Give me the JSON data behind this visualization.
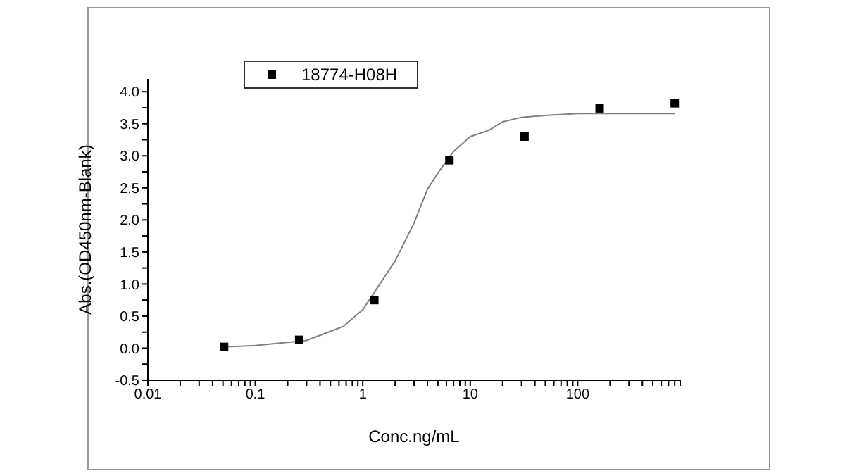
{
  "chart_data": {
    "type": "scatter",
    "xlabel": "Conc.ng/mL",
    "ylabel": "Abs.(OD450nm-Blank)",
    "log": "x",
    "xlim": [
      0.01,
      900
    ],
    "ylim": [
      -0.5,
      4.2
    ],
    "xticks": [
      {
        "value": 0.01,
        "label": "0.01"
      },
      {
        "value": 0.02,
        "label": null
      },
      {
        "value": 0.03,
        "label": null
      },
      {
        "value": 0.04,
        "label": null
      },
      {
        "value": 0.05,
        "label": null
      },
      {
        "value": 0.06,
        "label": null
      },
      {
        "value": 0.07,
        "label": null
      },
      {
        "value": 0.08,
        "label": null
      },
      {
        "value": 0.09,
        "label": null
      },
      {
        "value": 0.1,
        "label": "0.1"
      },
      {
        "value": 0.2,
        "label": null
      },
      {
        "value": 0.3,
        "label": null
      },
      {
        "value": 0.4,
        "label": null
      },
      {
        "value": 0.5,
        "label": null
      },
      {
        "value": 0.6,
        "label": null
      },
      {
        "value": 0.7,
        "label": null
      },
      {
        "value": 0.8,
        "label": null
      },
      {
        "value": 0.9,
        "label": null
      },
      1,
      {
        "value": 2,
        "label": null
      },
      {
        "value": 3,
        "label": null
      },
      {
        "value": 4,
        "label": null
      },
      {
        "value": 5,
        "label": null
      },
      {
        "value": 6,
        "label": null
      },
      {
        "value": 7,
        "label": null
      },
      {
        "value": 8,
        "label": null
      },
      {
        "value": 9,
        "label": null
      },
      10,
      {
        "value": 20,
        "label": null
      },
      {
        "value": 30,
        "label": null
      },
      {
        "value": 40,
        "label": null
      },
      {
        "value": 50,
        "label": null
      },
      {
        "value": 60,
        "label": null
      },
      {
        "value": 70,
        "label": null
      },
      {
        "value": 80,
        "label": null
      },
      {
        "value": 90,
        "label": null
      },
      100,
      {
        "value": 200,
        "label": null
      },
      {
        "value": 300,
        "label": null
      },
      {
        "value": 400,
        "label": null
      },
      {
        "value": 500,
        "label": null
      },
      {
        "value": 600,
        "label": null
      },
      {
        "value": 700,
        "label": null
      },
      {
        "value": 800,
        "label": null
      },
      {
        "value": 900,
        "label": null
      }
    ],
    "yticks": [
      {
        "value": -0.5,
        "label": "-0.5"
      },
      {
        "value": -0.25,
        "label": null
      },
      {
        "value": 0,
        "label": "0.0"
      },
      {
        "value": 0.25,
        "label": null
      },
      {
        "value": 0.5,
        "label": "0.5"
      },
      {
        "value": 0.75,
        "label": null
      },
      {
        "value": 1,
        "label": "1.0"
      },
      {
        "value": 1.25,
        "label": null
      },
      {
        "value": 1.5,
        "label": "1.5"
      },
      {
        "value": 1.75,
        "label": null
      },
      {
        "value": 2,
        "label": "2.0"
      },
      {
        "value": 2.25,
        "label": null
      },
      {
        "value": 2.5,
        "label": "2.5"
      },
      {
        "value": 2.75,
        "label": null
      },
      {
        "value": 3,
        "label": "3.0"
      },
      {
        "value": 3.25,
        "label": null
      },
      {
        "value": 3.5,
        "label": "3.5"
      },
      {
        "value": 3.75,
        "label": null
      },
      {
        "value": 4,
        "label": "4.0"
      }
    ],
    "legend": "top left",
    "marker": "square",
    "series": [
      {
        "name": "18774-H08H",
        "color": "#000000",
        "x": [
          0.0512,
          0.256,
          1.28,
          6.4,
          32,
          160,
          800
        ],
        "values": [
          0.02,
          0.13,
          0.75,
          2.93,
          3.3,
          3.74,
          3.82
        ]
      },
      {
        "type": "line",
        "color": "#808080",
        "marker": "none",
        "line_style": "solid",
        "x": [
          0.05,
          0.1,
          0.3,
          0.66,
          1,
          2,
          3,
          4,
          5,
          7,
          10,
          15,
          20,
          30,
          50,
          100,
          800
        ],
        "values": [
          0.02,
          0.04,
          0.12,
          0.34,
          0.6,
          1.36,
          1.95,
          2.48,
          2.73,
          3.07,
          3.3,
          3.4,
          3.53,
          3.6,
          3.63,
          3.66,
          3.66
        ]
      }
    ]
  }
}
